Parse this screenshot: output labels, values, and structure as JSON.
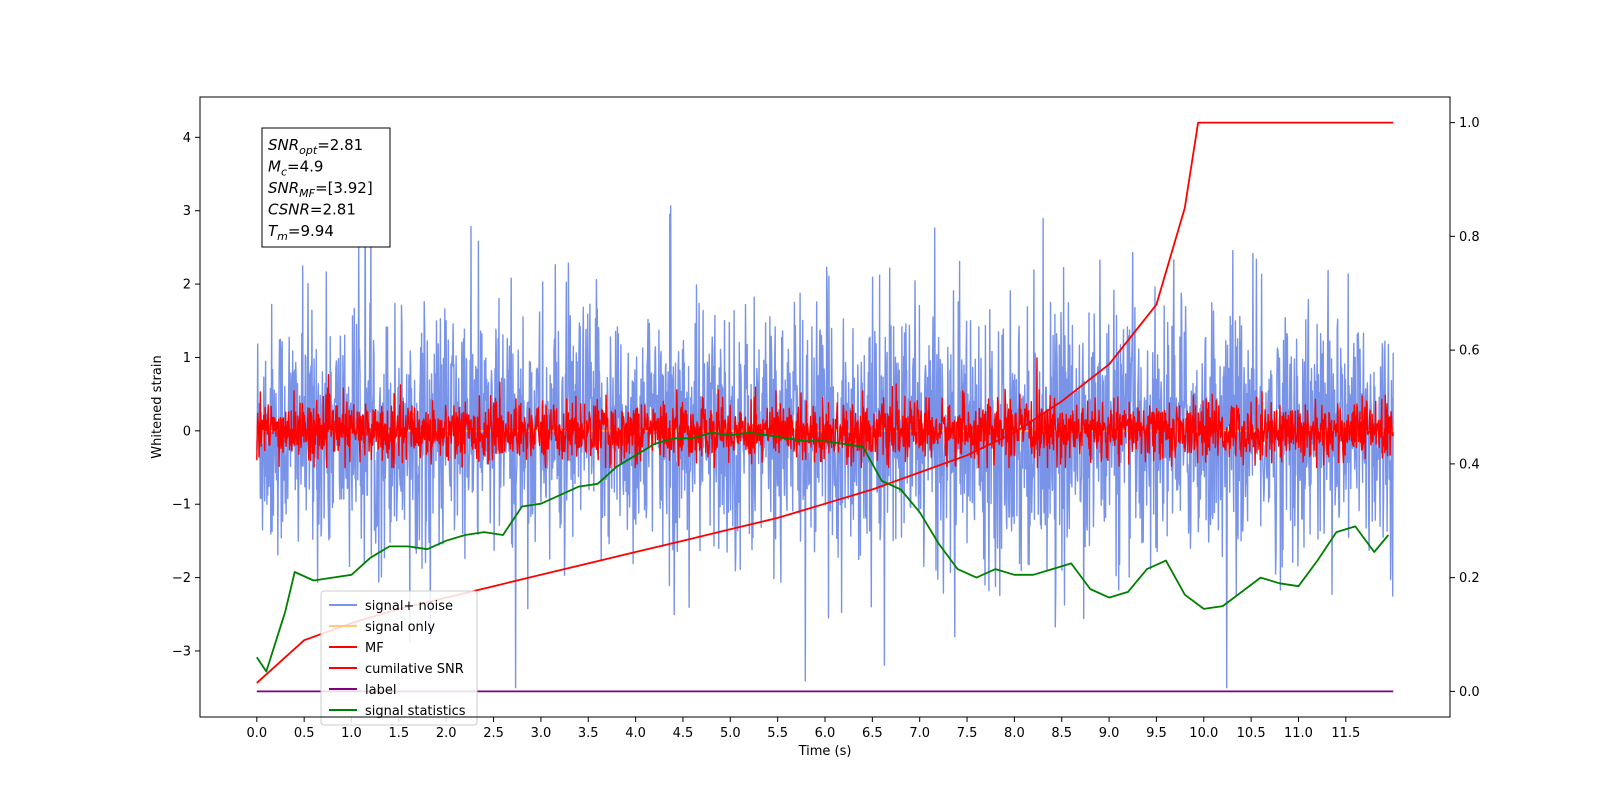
{
  "chart_data": {
    "type": "line",
    "title": "",
    "xlabel": "Time (s)",
    "ylabel": "Whitened strain",
    "y2label": "",
    "xlim": [
      -0.6,
      12.6
    ],
    "ylim": [
      -3.9,
      4.55
    ],
    "y2lim": [
      -0.045,
      1.045
    ],
    "grid": false,
    "legend_position": "lower-left",
    "x_ticks": [
      "0.0",
      "0.5",
      "1.0",
      "1.5",
      "2.0",
      "2.5",
      "3.0",
      "3.5",
      "4.0",
      "4.5",
      "5.0",
      "5.5",
      "6.0",
      "6.5",
      "7.0",
      "7.5",
      "8.0",
      "8.5",
      "9.0",
      "9.5",
      "10.0",
      "10.5",
      "11.0",
      "11.5"
    ],
    "y_ticks": [
      "4",
      "3",
      "2",
      "1",
      "0",
      "−1",
      "−2",
      "−3"
    ],
    "y2_ticks": [
      "1.0",
      "0.8",
      "0.6",
      "0.4",
      "0.2",
      "0.0"
    ],
    "stats": [
      {
        "sym": "SNR",
        "sub": "opt",
        "value": "=2.81"
      },
      {
        "sym": "M",
        "sub": "c",
        "value": "=4.9"
      },
      {
        "sym": "SNR",
        "sub": "MF",
        "value": "=[3.92]"
      },
      {
        "sym": "CSNR",
        "sub": "",
        "value": "=2.81"
      },
      {
        "sym": "T",
        "sub": "m",
        "value": "=9.94"
      }
    ],
    "series": [
      {
        "name": "signal+ noise",
        "color": "#7893e8",
        "axis": "left",
        "kind": "noise",
        "x_range": [
          0,
          12
        ],
        "spread": 0.85,
        "y_min": -3.5,
        "y_max": 4.2
      },
      {
        "name": "signal only",
        "color": "#ffc87a",
        "axis": "left",
        "kind": "flat",
        "x_range": [
          0,
          12
        ]
      },
      {
        "name": "MF",
        "color": "#ff0000",
        "axis": "left",
        "kind": "noise",
        "x_range": [
          0,
          12
        ],
        "spread": 0.2,
        "y_min": -0.5,
        "y_max": 1.0
      },
      {
        "name": "cumilative SNR",
        "color": "#ff0000",
        "axis": "right",
        "x": [
          0.0,
          0.5,
          1.0,
          1.5,
          2.0,
          2.5,
          3.0,
          3.5,
          4.0,
          4.5,
          5.0,
          5.5,
          6.0,
          6.5,
          7.0,
          7.5,
          8.0,
          8.5,
          9.0,
          9.5,
          9.8,
          9.94,
          12.0
        ],
        "y": [
          0.015,
          0.09,
          0.12,
          0.145,
          0.165,
          0.185,
          0.205,
          0.225,
          0.245,
          0.265,
          0.285,
          0.305,
          0.33,
          0.355,
          0.385,
          0.415,
          0.455,
          0.51,
          0.575,
          0.68,
          0.85,
          1.0,
          1.0
        ]
      },
      {
        "name": "label",
        "color": "#800080",
        "axis": "right",
        "x": [
          0.0,
          12.0
        ],
        "y": [
          0.0,
          0.0
        ]
      },
      {
        "name": "signal statistics",
        "color": "#008000",
        "axis": "right",
        "x": [
          0.0,
          0.1,
          0.3,
          0.4,
          0.6,
          0.8,
          1.0,
          1.2,
          1.4,
          1.6,
          1.8,
          2.0,
          2.2,
          2.4,
          2.6,
          2.8,
          3.0,
          3.2,
          3.4,
          3.6,
          3.8,
          4.0,
          4.2,
          4.4,
          4.6,
          4.8,
          5.0,
          5.2,
          5.4,
          5.6,
          5.8,
          6.0,
          6.2,
          6.4,
          6.6,
          6.8,
          7.0,
          7.2,
          7.4,
          7.6,
          7.8,
          8.0,
          8.2,
          8.4,
          8.6,
          8.8,
          9.0,
          9.2,
          9.4,
          9.6,
          9.8,
          10.0,
          10.2,
          10.4,
          10.6,
          10.8,
          11.0,
          11.2,
          11.4,
          11.6,
          11.8,
          11.95
        ],
        "y": [
          0.06,
          0.035,
          0.14,
          0.21,
          0.195,
          0.2,
          0.205,
          0.235,
          0.255,
          0.255,
          0.25,
          0.265,
          0.275,
          0.28,
          0.275,
          0.325,
          0.33,
          0.345,
          0.36,
          0.365,
          0.395,
          0.415,
          0.435,
          0.445,
          0.445,
          0.455,
          0.45,
          0.455,
          0.45,
          0.445,
          0.44,
          0.44,
          0.435,
          0.43,
          0.37,
          0.355,
          0.315,
          0.26,
          0.215,
          0.2,
          0.215,
          0.205,
          0.205,
          0.215,
          0.225,
          0.18,
          0.165,
          0.175,
          0.215,
          0.23,
          0.17,
          0.145,
          0.15,
          0.175,
          0.2,
          0.19,
          0.185,
          0.23,
          0.28,
          0.29,
          0.245,
          0.275
        ]
      }
    ]
  }
}
